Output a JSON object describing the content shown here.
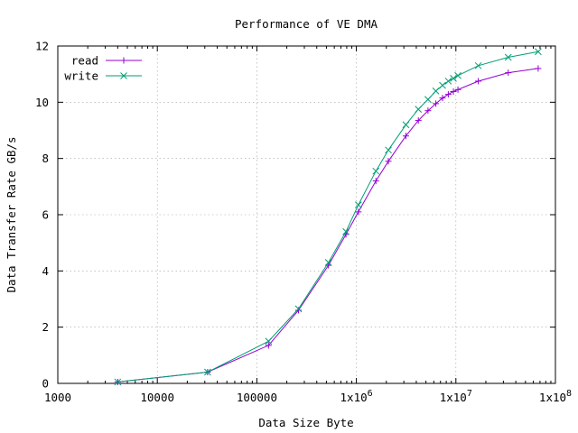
{
  "chart_data": {
    "type": "line",
    "title": "Performance of VE DMA",
    "xlabel": "Data Size Byte",
    "ylabel": "Data Transfer Rate GB/s",
    "x_scale": "log",
    "xlim": [
      1000,
      100000000
    ],
    "ylim": [
      0,
      12
    ],
    "x_ticks": [
      1000,
      10000,
      100000,
      1000000,
      10000000,
      100000000
    ],
    "x_tick_labels": [
      "1000",
      "10000",
      "100000",
      "1x10^6",
      "1x10^7",
      "1x10^8"
    ],
    "y_ticks": [
      0,
      2,
      4,
      6,
      8,
      10,
      12
    ],
    "y_tick_labels": [
      "0",
      "2",
      "4",
      "6",
      "8",
      "10",
      "12"
    ],
    "grid": true,
    "legend_position": "top-left",
    "series": [
      {
        "name": "read",
        "color": "#9400d3",
        "marker": "plus",
        "x": [
          4000,
          32000,
          131000,
          262000,
          524000,
          786000,
          1048000,
          1572000,
          2097000,
          3145000,
          4194000,
          5242000,
          6291000,
          7340000,
          8388000,
          9437000,
          10485000,
          16777000,
          33554000,
          67108000
        ],
        "y": [
          0.05,
          0.4,
          1.35,
          2.6,
          4.2,
          5.3,
          6.1,
          7.2,
          7.9,
          8.8,
          9.35,
          9.7,
          9.95,
          10.15,
          10.28,
          10.38,
          10.45,
          10.75,
          11.05,
          11.2
        ]
      },
      {
        "name": "write",
        "color": "#009e73",
        "marker": "cross",
        "x": [
          4000,
          32000,
          131000,
          262000,
          524000,
          786000,
          1048000,
          1572000,
          2097000,
          3145000,
          4194000,
          5242000,
          6291000,
          7340000,
          8388000,
          9437000,
          10485000,
          16777000,
          33554000,
          67108000
        ],
        "y": [
          0.05,
          0.4,
          1.5,
          2.65,
          4.3,
          5.4,
          6.35,
          7.55,
          8.3,
          9.2,
          9.75,
          10.1,
          10.4,
          10.6,
          10.75,
          10.85,
          10.95,
          11.3,
          11.6,
          11.8
        ]
      }
    ]
  }
}
